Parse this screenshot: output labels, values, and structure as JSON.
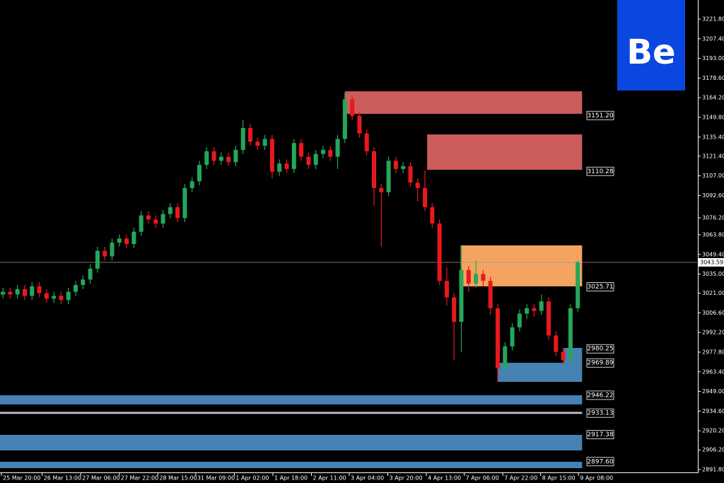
{
  "chart_data": {
    "type": "candlestick",
    "logo": "Be",
    "up_color": "#26a65b",
    "down_color": "#e8191c",
    "open": [
      3020,
      3022,
      3020,
      3024,
      3019,
      3026,
      3021,
      3017,
      3019,
      3016,
      3022,
      3027,
      3031,
      3039,
      3052,
      3048,
      3058,
      3061,
      3057,
      3066,
      3078,
      3075,
      3072,
      3079,
      3084,
      3076,
      3098,
      3103,
      3115,
      3125,
      3118,
      3121,
      3117,
      3126,
      3142,
      3132,
      3129,
      3134,
      3110,
      3116,
      3112,
      3131,
      3121,
      3115,
      3123,
      3126,
      3121,
      3134,
      3163,
      3151,
      3138,
      3125,
      3098,
      3095,
      3118,
      3112,
      3114,
      3102,
      3098,
      3084,
      3072,
      3030,
      3018,
      3000,
      3038,
      3028,
      3035,
      3030,
      3010,
      2966,
      2982,
      2996,
      3006,
      3010,
      3008,
      3015,
      2990,
      2978,
      2972,
      3010
    ],
    "high": [
      3025,
      3025,
      3027,
      3027,
      3029,
      3029,
      3024,
      3022,
      3022,
      3025,
      3030,
      3034,
      3042,
      3055,
      3055,
      3061,
      3064,
      3064,
      3069,
      3081,
      3081,
      3078,
      3082,
      3087,
      3087,
      3101,
      3106,
      3118,
      3128,
      3128,
      3124,
      3124,
      3129,
      3148,
      3145,
      3135,
      3137,
      3137,
      3119,
      3119,
      3134,
      3134,
      3124,
      3126,
      3129,
      3129,
      3137,
      3168,
      3166,
      3154,
      3141,
      3128,
      3101,
      3121,
      3121,
      3117,
      3117,
      3105,
      3111,
      3087,
      3075,
      3040,
      3021,
      3056,
      3041,
      3045,
      3038,
      3033,
      3013,
      2985,
      2999,
      3009,
      3013,
      3013,
      3020,
      3018,
      2993,
      2981,
      3013,
      3045
    ],
    "low": [
      3017,
      3017,
      3017,
      3016,
      3016,
      3018,
      3014,
      3014,
      3013,
      3013,
      3019,
      3024,
      3028,
      3036,
      3045,
      3045,
      3055,
      3054,
      3054,
      3063,
      3072,
      3069,
      3069,
      3076,
      3073,
      3073,
      3095,
      3100,
      3112,
      3115,
      3115,
      3114,
      3114,
      3123,
      3129,
      3126,
      3126,
      3105,
      3107,
      3109,
      3109,
      3118,
      3112,
      3112,
      3120,
      3118,
      3112,
      3131,
      3148,
      3135,
      3122,
      3085,
      3055,
      3092,
      3109,
      3109,
      3099,
      3088,
      3081,
      3069,
      3027,
      3012,
      2972,
      2978,
      3022,
      3025,
      3026,
      3005,
      2956,
      2962,
      2979,
      2993,
      3002,
      3004,
      3005,
      2987,
      2975,
      2969,
      2969,
      3007
    ],
    "close": [
      3022,
      3020,
      3024,
      3019,
      3026,
      3021,
      3017,
      3019,
      3016,
      3022,
      3027,
      3031,
      3039,
      3052,
      3048,
      3058,
      3061,
      3057,
      3066,
      3078,
      3075,
      3072,
      3079,
      3084,
      3076,
      3098,
      3103,
      3115,
      3125,
      3118,
      3121,
      3117,
      3126,
      3142,
      3132,
      3129,
      3134,
      3110,
      3116,
      3112,
      3131,
      3121,
      3115,
      3123,
      3126,
      3121,
      3134,
      3163,
      3151,
      3138,
      3125,
      3098,
      3095,
      3118,
      3112,
      3114,
      3102,
      3098,
      3084,
      3072,
      3030,
      3018,
      3000,
      3038,
      3028,
      3035,
      3030,
      3010,
      2966,
      2982,
      2996,
      3006,
      3010,
      3008,
      3015,
      2990,
      2978,
      2972,
      3010,
      3043.59
    ],
    "xlim": [
      -0.4,
      95.6
    ],
    "ylim": [
      2889.7,
      3235.8
    ],
    "xticks": [
      {
        "value": -0.2,
        "label": "25 Mar 20:00"
      },
      {
        "value": 5.4,
        "label": "26 Mar 13:00"
      },
      {
        "value": 10.7,
        "label": "27 Mar 06:00"
      },
      {
        "value": 16.0,
        "label": "27 Mar 22:00"
      },
      {
        "value": 21.3,
        "label": "28 Mar 15:00"
      },
      {
        "value": 26.5,
        "label": "31 Mar 09:00"
      },
      {
        "value": 31.8,
        "label": "1 Apr 02:00"
      },
      {
        "value": 37.1,
        "label": "1 Apr 18:00"
      },
      {
        "value": 42.4,
        "label": "2 Apr 11:00"
      },
      {
        "value": 47.6,
        "label": "3 Apr 04:00"
      },
      {
        "value": 52.9,
        "label": "3 Apr 20:00"
      },
      {
        "value": 58.2,
        "label": "4 Apr 13:00"
      },
      {
        "value": 63.4,
        "label": "7 Apr 06:00"
      },
      {
        "value": 68.7,
        "label": "7 Apr 22:00"
      },
      {
        "value": 73.9,
        "label": "8 Apr 15:00"
      },
      {
        "value": 79.1,
        "label": "9 Apr 08:00"
      }
    ],
    "yticks": [
      {
        "value": 3221.8,
        "label": "3221.80"
      },
      {
        "value": 3207.4,
        "label": "3207.40"
      },
      {
        "value": 3193.0,
        "label": "3193.00"
      },
      {
        "value": 3178.6,
        "label": "3178.60"
      },
      {
        "value": 3164.2,
        "label": "3164.20"
      },
      {
        "value": 3149.8,
        "label": "3149.80"
      },
      {
        "value": 3135.4,
        "label": "3135.40"
      },
      {
        "value": 3121.4,
        "label": "3121.40"
      },
      {
        "value": 3107.0,
        "label": "3107.00"
      },
      {
        "value": 3092.6,
        "label": "3092.60"
      },
      {
        "value": 3076.2,
        "label": "3076.20"
      },
      {
        "value": 3063.8,
        "label": "3063.80"
      },
      {
        "value": 3049.4,
        "label": "3049.40"
      },
      {
        "value": 3035.0,
        "label": "3035.00"
      },
      {
        "value": 3021.0,
        "label": "3021.00"
      },
      {
        "value": 3006.6,
        "label": "3006.60"
      },
      {
        "value": 2992.2,
        "label": "2992.20"
      },
      {
        "value": 2977.8,
        "label": "2977.80"
      },
      {
        "value": 2963.4,
        "label": "2963.40"
      },
      {
        "value": 2949.0,
        "label": "2949.00"
      },
      {
        "value": 2934.6,
        "label": "2934.60"
      },
      {
        "value": 2920.2,
        "label": "2920.20"
      },
      {
        "value": 2906.2,
        "label": "2906.20"
      },
      {
        "value": 2891.8,
        "label": "2891.80"
      }
    ],
    "last_price": {
      "value": 3043.59,
      "label": "3043.59"
    },
    "zones": [
      {
        "start": 47.0,
        "end": 79.6,
        "top": 3168.9,
        "bottom": 3152.4,
        "color": "#cd5c5c",
        "level": {
          "value": 3151.2,
          "label": "3151.20"
        }
      },
      {
        "start": 58.3,
        "end": 79.6,
        "top": 3137.3,
        "bottom": 3111.4,
        "color": "#cd5c5c",
        "level": {
          "value": 3110.28,
          "label": "3110.28"
        }
      },
      {
        "start": 62.9,
        "end": 79.6,
        "top": 3056.0,
        "bottom": 3026.0,
        "color": "#f4a460",
        "level": {
          "value": 3025.71,
          "label": "3025.71"
        }
      },
      {
        "start": 77.1,
        "end": 79.6,
        "top": 2980.9,
        "bottom": 2970.0,
        "color": "#4682b4",
        "level": {
          "value": 2980.25,
          "label": "2980.25"
        }
      },
      {
        "start": 68.0,
        "end": 79.6,
        "top": 2970.0,
        "bottom": 2956.0,
        "color": "#4682b4",
        "level": {
          "value": 2969.89,
          "label": "2969.89"
        }
      },
      {
        "start": -0.4,
        "end": 79.6,
        "top": 2946.2,
        "bottom": 2939.5,
        "color": "#4682b4",
        "level": {
          "value": 2946.22,
          "label": "2946.22"
        }
      },
      {
        "start": -0.4,
        "end": 79.6,
        "top": 2934.0,
        "bottom": 2932.6,
        "color": "#c8c8c8",
        "level": {
          "value": 2933.13,
          "label": "2933.13"
        }
      },
      {
        "start": -0.4,
        "end": 79.6,
        "top": 2917.2,
        "bottom": 2905.8,
        "color": "#4682b4",
        "level": {
          "value": 2917.38,
          "label": "2917.38"
        }
      },
      {
        "start": -0.4,
        "end": 79.6,
        "top": 2897.5,
        "bottom": 2892.8,
        "color": "#4682b4",
        "level": {
          "value": 2897.6,
          "label": "2897.60"
        }
      }
    ]
  }
}
